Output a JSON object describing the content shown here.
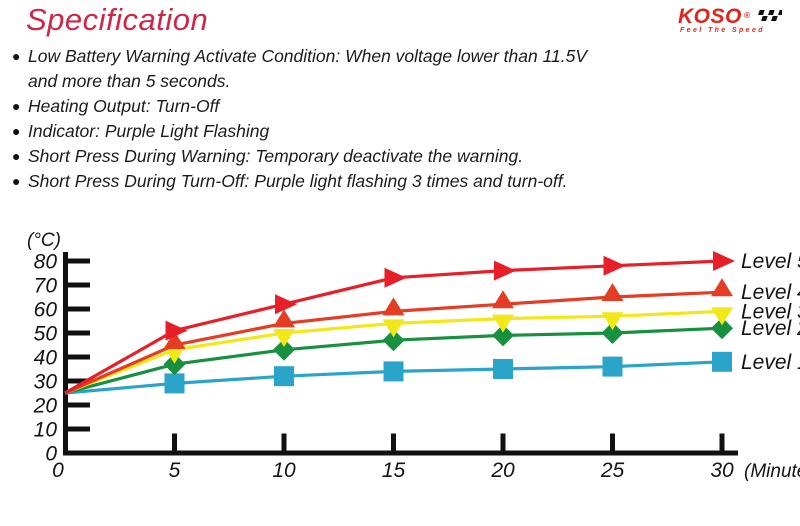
{
  "colors": {
    "title_red": "#cd2646",
    "brand_red": "#e1251c",
    "axis_black": "#111111"
  },
  "header": {
    "title": "Specification",
    "logo": {
      "brand": "KOSO",
      "registered": "®",
      "tagline": "Feel The Speed"
    }
  },
  "specs": {
    "bullet_char": "●",
    "items": [
      {
        "lines": [
          "Low Battery Warning Activate Condition: When voltage lower than 11.5V",
          "and more than 5 seconds."
        ]
      },
      {
        "lines": [
          "Heating Output: Turn-Off"
        ]
      },
      {
        "lines": [
          "Indicator: Purple Light Flashing"
        ]
      },
      {
        "lines": [
          "Short Press During Warning: Temporary deactivate the warning."
        ]
      },
      {
        "lines": [
          "Short Press During Turn-Off: Purple light flashing 3 times and turn-off."
        ]
      }
    ]
  },
  "chart_data": {
    "type": "line",
    "title": "",
    "ylabel": "(°C)",
    "xlabel": "(Minute",
    "x": [
      0,
      5,
      10,
      15,
      20,
      25,
      30
    ],
    "x_ticks": [
      0,
      5,
      10,
      15,
      20,
      25,
      30
    ],
    "y_ticks": [
      0,
      10,
      20,
      30,
      40,
      50,
      60,
      70,
      80
    ],
    "xlim": [
      0,
      31
    ],
    "ylim": [
      0,
      85
    ],
    "grid": false,
    "legend_position": "right",
    "series": [
      {
        "name": "Level 5",
        "marker": "triangle-right",
        "color": "#e71f28",
        "values": [
          25,
          51,
          62,
          73,
          76,
          78,
          80
        ]
      },
      {
        "name": "Level 4",
        "marker": "triangle-up",
        "color": "#e53c24",
        "values": [
          25,
          45,
          54,
          59,
          62,
          65,
          67
        ]
      },
      {
        "name": "Level 3",
        "marker": "triangle-down",
        "color": "#f2e818",
        "values": [
          25,
          43,
          50,
          54,
          56,
          57,
          59
        ]
      },
      {
        "name": "Level 2",
        "marker": "diamond",
        "color": "#17903f",
        "values": [
          25,
          37,
          43,
          47,
          49,
          50,
          52
        ]
      },
      {
        "name": "Level 1",
        "marker": "square",
        "color": "#2aa4c9",
        "values": [
          25,
          29,
          32,
          34,
          35,
          36,
          38
        ]
      }
    ]
  }
}
